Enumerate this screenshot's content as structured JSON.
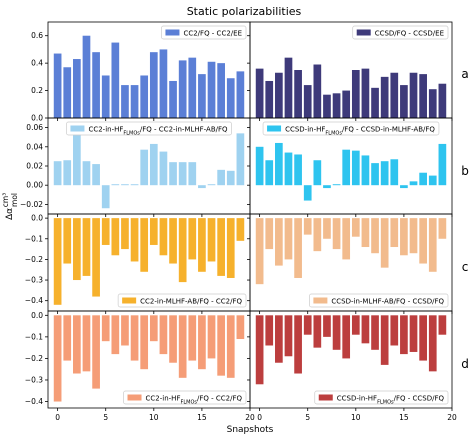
{
  "figure_title": "Static polarizabilities",
  "xlabel": "Snapshots",
  "ylabel_main": "Δα",
  "ylabel_unit_num": "cm³",
  "ylabel_unit_den": "mol",
  "row_labels": [
    "a",
    "b",
    "c",
    "d"
  ],
  "chart_data": [
    {
      "id": "a-left",
      "type": "bar",
      "row": 0,
      "col": 0,
      "x": [
        0,
        1,
        2,
        3,
        4,
        5,
        6,
        7,
        8,
        9,
        10,
        11,
        12,
        13,
        14,
        15,
        16,
        17,
        18,
        19
      ],
      "ylim": [
        0,
        0.7
      ],
      "yticks": [
        0,
        0.2,
        0.4,
        0.6
      ],
      "ytick_labels": [
        "0.0",
        "0.2",
        "0.4",
        "0.6"
      ],
      "xlim": [
        -1,
        20
      ],
      "xticks": [
        0,
        5,
        10,
        15,
        20
      ],
      "color": "#5b7fd6",
      "series_name": "CC2/FQ - CC2/EE",
      "legend_loc": "upper right",
      "values": [
        0.47,
        0.37,
        0.43,
        0.6,
        0.48,
        0.31,
        0.55,
        0.24,
        0.24,
        0.31,
        0.48,
        0.5,
        0.27,
        0.42,
        0.44,
        0.32,
        0.41,
        0.4,
        0.29,
        0.34
      ]
    },
    {
      "id": "a-right",
      "type": "bar",
      "row": 0,
      "col": 1,
      "x": [
        0,
        1,
        2,
        3,
        4,
        5,
        6,
        7,
        8,
        9,
        10,
        11,
        12,
        13,
        14,
        15,
        16,
        17,
        18,
        19
      ],
      "ylim": [
        0,
        0.7
      ],
      "yticks": [
        0,
        0.2,
        0.4,
        0.6
      ],
      "xlim": [
        -1,
        20
      ],
      "xticks": [
        0,
        5,
        10,
        15,
        20
      ],
      "color": "#3e3a7a",
      "series_name": "CCSD/FQ - CCSD/EE",
      "legend_loc": "upper right",
      "values": [
        0.36,
        0.27,
        0.33,
        0.44,
        0.35,
        0.24,
        0.39,
        0.17,
        0.18,
        0.2,
        0.35,
        0.36,
        0.22,
        0.3,
        0.33,
        0.24,
        0.33,
        0.32,
        0.21,
        0.25
      ]
    },
    {
      "id": "b-left",
      "type": "bar",
      "row": 1,
      "col": 0,
      "x": [
        0,
        1,
        2,
        3,
        4,
        5,
        6,
        7,
        8,
        9,
        10,
        11,
        12,
        13,
        14,
        15,
        16,
        17,
        18,
        19
      ],
      "ylim": [
        -0.03,
        0.07
      ],
      "yticks": [
        -0.02,
        0,
        0.02,
        0.04,
        0.06
      ],
      "ytick_labels": [
        "−0.02",
        "0.00",
        "0.02",
        "0.04",
        "0.06"
      ],
      "xlim": [
        -1,
        20
      ],
      "xticks": [
        0,
        5,
        10,
        15,
        20
      ],
      "color": "#9fd2f0",
      "series_name_parts": [
        "CC2-in-HF",
        "FLMOs",
        "/FQ - CC2-in-MLHF-AB/FQ"
      ],
      "legend_loc": "upper center",
      "values": [
        0.025,
        0.026,
        0.053,
        0.025,
        0.022,
        -0.024,
        0.001,
        0.001,
        0.001,
        0.037,
        0.043,
        0.035,
        0.024,
        0.024,
        0.024,
        -0.003,
        0.001,
        0.016,
        0.015,
        0.054
      ]
    },
    {
      "id": "b-right",
      "type": "bar",
      "row": 1,
      "col": 1,
      "x": [
        0,
        1,
        2,
        3,
        4,
        5,
        6,
        7,
        8,
        9,
        10,
        11,
        12,
        13,
        14,
        15,
        16,
        17,
        18,
        19
      ],
      "ylim": [
        -0.03,
        0.07
      ],
      "yticks": [
        -0.02,
        0,
        0.02,
        0.04,
        0.06
      ],
      "xlim": [
        -1,
        20
      ],
      "xticks": [
        0,
        5,
        10,
        15,
        20
      ],
      "color": "#2ec4ef",
      "series_name_parts": [
        "CCSD-in-HF",
        "FLMOs",
        "/FQ - CCSD-in-MLHF-AB/FQ"
      ],
      "legend_loc": "upper center",
      "values": [
        0.04,
        0.026,
        0.044,
        0.034,
        0.032,
        -0.016,
        0.026,
        -0.003,
        0.001,
        0.037,
        0.036,
        0.031,
        0.023,
        0.025,
        0.027,
        -0.003,
        0.004,
        0.013,
        0.01,
        0.043
      ]
    },
    {
      "id": "c-left",
      "type": "bar",
      "row": 2,
      "col": 0,
      "x": [
        0,
        1,
        2,
        3,
        4,
        5,
        6,
        7,
        8,
        9,
        10,
        11,
        12,
        13,
        14,
        15,
        16,
        17,
        18,
        19
      ],
      "ylim": [
        -0.45,
        0.02
      ],
      "yticks": [
        -0.4,
        -0.3,
        -0.2,
        -0.1,
        0
      ],
      "ytick_labels": [
        "−0.4",
        "−0.3",
        "−0.2",
        "−0.1",
        "0.0"
      ],
      "xlim": [
        -1,
        20
      ],
      "xticks": [
        0,
        5,
        10,
        15,
        20
      ],
      "color": "#f6b12c",
      "series_name": "CC2-in-MLHF-AB/FQ - CC2/FQ",
      "legend_loc": "lower right",
      "values": [
        -0.42,
        -0.22,
        -0.3,
        -0.28,
        -0.38,
        -0.13,
        -0.18,
        -0.15,
        -0.21,
        -0.26,
        -0.13,
        -0.18,
        -0.22,
        -0.31,
        -0.2,
        -0.26,
        -0.21,
        -0.28,
        -0.29,
        -0.11
      ]
    },
    {
      "id": "c-right",
      "type": "bar",
      "row": 2,
      "col": 1,
      "x": [
        0,
        1,
        2,
        3,
        4,
        5,
        6,
        7,
        8,
        9,
        10,
        11,
        12,
        13,
        14,
        15,
        16,
        17,
        18,
        19
      ],
      "ylim": [
        -0.45,
        0.02
      ],
      "yticks": [
        -0.4,
        -0.3,
        -0.2,
        -0.1,
        0
      ],
      "xlim": [
        -1,
        20
      ],
      "xticks": [
        0,
        5,
        10,
        15,
        20
      ],
      "color": "#f2bb8d",
      "series_name": "CCSD-in-MLHF-AB/FQ - CCSD/FQ",
      "legend_loc": "lower right",
      "values": [
        -0.32,
        -0.15,
        -0.23,
        -0.2,
        -0.29,
        -0.08,
        -0.16,
        -0.1,
        -0.15,
        -0.2,
        -0.09,
        -0.14,
        -0.17,
        -0.24,
        -0.14,
        -0.18,
        -0.17,
        -0.22,
        -0.26,
        -0.1
      ]
    },
    {
      "id": "d-left",
      "type": "bar",
      "row": 3,
      "col": 0,
      "x": [
        0,
        1,
        2,
        3,
        4,
        5,
        6,
        7,
        8,
        9,
        10,
        11,
        12,
        13,
        14,
        15,
        16,
        17,
        18,
        19
      ],
      "ylim": [
        -0.43,
        0.02
      ],
      "yticks": [
        -0.4,
        -0.3,
        -0.2,
        -0.1,
        0
      ],
      "ytick_labels": [
        "−0.4",
        "−0.3",
        "−0.2",
        "−0.1",
        "0.0"
      ],
      "xlim": [
        -1,
        20
      ],
      "xticks": [
        0,
        5,
        10,
        15,
        20
      ],
      "color": "#f59d77",
      "series_name_parts": [
        "CC2-in-HF",
        "FLMOs",
        "/FQ - CC2/FQ"
      ],
      "legend_loc": "lower right",
      "values": [
        -0.4,
        -0.21,
        -0.27,
        -0.26,
        -0.34,
        -0.12,
        -0.18,
        -0.14,
        -0.21,
        -0.25,
        -0.12,
        -0.18,
        -0.22,
        -0.29,
        -0.21,
        -0.25,
        -0.2,
        -0.28,
        -0.29,
        -0.11
      ]
    },
    {
      "id": "d-right",
      "type": "bar",
      "row": 3,
      "col": 1,
      "x": [
        0,
        1,
        2,
        3,
        4,
        5,
        6,
        7,
        8,
        9,
        10,
        11,
        12,
        13,
        14,
        15,
        16,
        17,
        18,
        19
      ],
      "ylim": [
        -0.43,
        0.02
      ],
      "yticks": [
        -0.4,
        -0.3,
        -0.2,
        -0.1,
        0
      ],
      "xlim": [
        -1,
        20
      ],
      "xticks": [
        0,
        5,
        10,
        15,
        20
      ],
      "color": "#bc3e3e",
      "series_name_parts": [
        "CCSD-in-HF",
        "FLMOs",
        "/FQ - CCSD/FQ"
      ],
      "legend_loc": "lower right",
      "values": [
        -0.32,
        -0.14,
        -0.22,
        -0.19,
        -0.27,
        -0.09,
        -0.15,
        -0.1,
        -0.16,
        -0.2,
        -0.09,
        -0.13,
        -0.16,
        -0.23,
        -0.14,
        -0.18,
        -0.17,
        -0.21,
        -0.26,
        -0.09
      ]
    }
  ]
}
